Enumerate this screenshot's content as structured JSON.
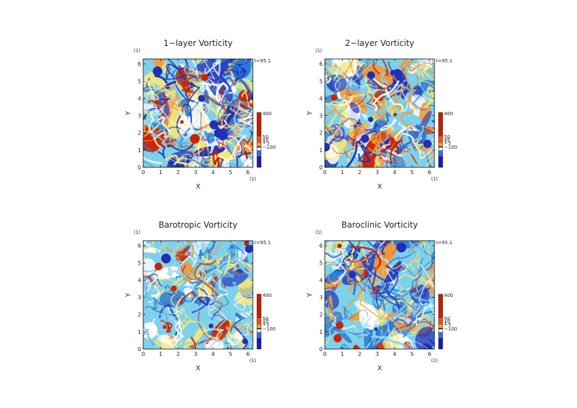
{
  "chart_data": [
    {
      "type": "heatmap",
      "title": "1−layer Vorticity",
      "xlabel": "X",
      "ylabel": "Y",
      "x_unit": "(1)",
      "y_unit": "(1)",
      "xlim": [
        0,
        6.283
      ],
      "ylim": [
        0,
        6.283
      ],
      "x_ticks": [
        "0",
        "1",
        "2",
        "3",
        "4",
        "5",
        "6"
      ],
      "y_ticks": [
        "0",
        "1",
        "2",
        "3",
        "4",
        "5",
        "6"
      ],
      "time_label": "t=95.1",
      "colorbar_labels": [
        {
          "text": "400",
          "value": 400
        },
        {
          "text": "50",
          "value": 50
        },
        {
          "text": "10",
          "value": 10
        },
        {
          "text": "1",
          "value": 1
        },
        {
          "text": "−5",
          "value": -5
        },
        {
          "text": "−100",
          "value": -100
        }
      ],
      "palette_weights": [
        0.22,
        0.16,
        0.06,
        0.2,
        0.18,
        0.1,
        0.08
      ],
      "seed": 11
    },
    {
      "type": "heatmap",
      "title": "2−layer Vorticity",
      "xlabel": "X",
      "ylabel": "Y",
      "x_unit": "(1)",
      "y_unit": "(1)",
      "xlim": [
        0,
        6.283
      ],
      "ylim": [
        0,
        6.283
      ],
      "x_ticks": [
        "0",
        "1",
        "2",
        "3",
        "4",
        "5",
        "6"
      ],
      "y_ticks": [
        "0",
        "1",
        "2",
        "3",
        "4",
        "5",
        "6"
      ],
      "time_label": "t=95.1",
      "colorbar_labels": [
        {
          "text": "400",
          "value": 400
        },
        {
          "text": "50",
          "value": 50
        },
        {
          "text": "10",
          "value": 10
        },
        {
          "text": "1",
          "value": 1
        },
        {
          "text": "−5",
          "value": -5
        },
        {
          "text": "−100",
          "value": -100
        }
      ],
      "palette_weights": [
        0.1,
        0.14,
        0.16,
        0.12,
        0.22,
        0.16,
        0.1
      ],
      "seed": 23
    },
    {
      "type": "heatmap",
      "title": "Barotropic Vorticity",
      "xlabel": "X",
      "ylabel": "Y",
      "x_unit": "(1)",
      "y_unit": "(1)",
      "xlim": [
        0,
        6.283
      ],
      "ylim": [
        0,
        6.283
      ],
      "x_ticks": [
        "0",
        "1",
        "2",
        "3",
        "4",
        "5",
        "6"
      ],
      "y_ticks": [
        "0",
        "1",
        "2",
        "3",
        "4",
        "5",
        "6"
      ],
      "time_label": "t=95.1",
      "colorbar_labels": [
        {
          "text": "400",
          "value": 400
        },
        {
          "text": "50",
          "value": 50
        },
        {
          "text": "10",
          "value": 10
        },
        {
          "text": "1",
          "value": 1
        },
        {
          "text": "−5",
          "value": -5
        },
        {
          "text": "−100",
          "value": -100
        }
      ],
      "palette_weights": [
        0.06,
        0.14,
        0.34,
        0.2,
        0.16,
        0.06,
        0.04
      ],
      "seed": 37
    },
    {
      "type": "heatmap",
      "title": "Baroclinic Vorticity",
      "xlabel": "X",
      "ylabel": "Y",
      "x_unit": "(1)",
      "y_unit": "(1)",
      "xlim": [
        0,
        6.283
      ],
      "ylim": [
        0,
        6.283
      ],
      "x_ticks": [
        "0",
        "1",
        "2",
        "3",
        "4",
        "5",
        "6"
      ],
      "y_ticks": [
        "0",
        "1",
        "2",
        "3",
        "4",
        "5",
        "6"
      ],
      "time_label": "t=95.1",
      "colorbar_labels": [
        {
          "text": "400",
          "value": 400
        },
        {
          "text": "50",
          "value": 50
        },
        {
          "text": "10",
          "value": 10
        },
        {
          "text": "1",
          "value": 1
        },
        {
          "text": "−5",
          "value": -5
        },
        {
          "text": "−100",
          "value": -100
        }
      ],
      "palette_weights": [
        0.12,
        0.2,
        0.18,
        0.12,
        0.22,
        0.1,
        0.06
      ],
      "seed": 53
    }
  ],
  "colors": {
    "palette": [
      "#1f2fb8",
      "#2a78d6",
      "#7fd0ea",
      "#ffffff",
      "#f4e77a",
      "#f29a3a",
      "#cc2200"
    ],
    "colorbar": [
      "#c81e00",
      "#e05a10",
      "#f3a04a",
      "#111111",
      "#f2f2f2",
      "#3a6fe0",
      "#1a1ab0"
    ]
  }
}
